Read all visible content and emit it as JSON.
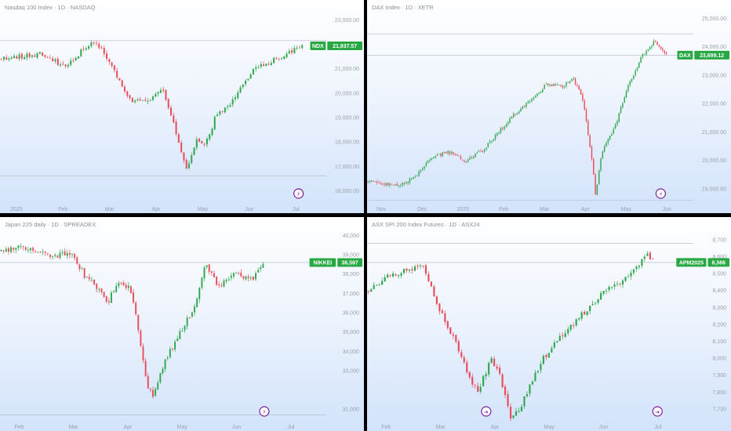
{
  "colors": {
    "up": "#2fa84f",
    "down": "#e84d5b",
    "tag": "#27a843",
    "grid_line": "#aeb6c2",
    "event": "#7b1fa2"
  },
  "chart_data": [
    {
      "id": "p1",
      "type": "candlestick",
      "title": "Nasdaq 100 Index · 1D · NASDAQ",
      "symbol": "NDX",
      "last_value_label": "21,937.57",
      "last_value": 21937.57,
      "ylim": [
        15500,
        23300
      ],
      "y_ticks": [
        {
          "v": 23000,
          "label": "23,000.00"
        },
        {
          "v": 22000,
          "label": "22,000.00"
        },
        {
          "v": 21000,
          "label": "21,000.00"
        },
        {
          "v": 20000,
          "label": "20,000.00"
        },
        {
          "v": 19000,
          "label": "19,000.00"
        },
        {
          "v": 18000,
          "label": "18,000.00"
        },
        {
          "v": 17000,
          "label": "17,000.00"
        },
        {
          "v": 16000,
          "label": "16,000.00"
        }
      ],
      "x_labels": [
        "2025",
        "Feb",
        "Mar",
        "Apr",
        "May",
        "Jun",
        "Jul"
      ],
      "levels": [
        22150,
        16600
      ],
      "event_icons": [
        {
          "at": 0.915,
          "glyph": "⚡"
        }
      ],
      "shape": [
        [
          0,
          21400
        ],
        [
          0.12,
          21600
        ],
        [
          0.2,
          21100
        ],
        [
          0.28,
          22100
        ],
        [
          0.31,
          21900
        ],
        [
          0.36,
          20700
        ],
        [
          0.4,
          19700
        ],
        [
          0.45,
          19600
        ],
        [
          0.5,
          20200
        ],
        [
          0.53,
          18800
        ],
        [
          0.56,
          17300
        ],
        [
          0.575,
          16800
        ],
        [
          0.6,
          18100
        ],
        [
          0.63,
          17900
        ],
        [
          0.66,
          19000
        ],
        [
          0.7,
          19500
        ],
        [
          0.74,
          20200
        ],
        [
          0.78,
          21000
        ],
        [
          0.85,
          21400
        ],
        [
          0.9,
          21750
        ],
        [
          0.93,
          21940
        ]
      ],
      "t_end": 0.93,
      "n": 118,
      "seed": 11,
      "vol": 180
    },
    {
      "id": "p2",
      "type": "candlestick",
      "title": "DAX Index · 1D · XETR",
      "symbol": "DAX",
      "last_value_label": "23,699.12",
      "last_value": 23699.12,
      "ylim": [
        18500,
        25200
      ],
      "y_ticks": [
        {
          "v": 25000,
          "label": "25,000.00"
        },
        {
          "v": 24000,
          "label": "24,000.00"
        },
        {
          "v": 23000,
          "label": "23,000.00"
        },
        {
          "v": 22000,
          "label": "22,000.00"
        },
        {
          "v": 21000,
          "label": "21,000.00"
        },
        {
          "v": 20000,
          "label": "20,000.00"
        },
        {
          "v": 19000,
          "label": "19,000.00"
        },
        {
          "v": 18000,
          "label": "18,000.00"
        }
      ],
      "x_labels": [
        "Nov",
        "Dec",
        "2025",
        "Feb",
        "Mar",
        "Apr",
        "May",
        "Jun"
      ],
      "levels": [
        24450,
        23700,
        18600
      ],
      "event_icons": [
        {
          "at": 0.9,
          "glyph": "⚡"
        }
      ],
      "shape": [
        [
          0,
          19250
        ],
        [
          0.05,
          19200
        ],
        [
          0.1,
          19100
        ],
        [
          0.15,
          19450
        ],
        [
          0.2,
          20100
        ],
        [
          0.25,
          20300
        ],
        [
          0.3,
          20000
        ],
        [
          0.35,
          20300
        ],
        [
          0.45,
          21600
        ],
        [
          0.52,
          22300
        ],
        [
          0.55,
          22700
        ],
        [
          0.6,
          22600
        ],
        [
          0.63,
          22900
        ],
        [
          0.66,
          22200
        ],
        [
          0.69,
          20000
        ],
        [
          0.7,
          18800
        ],
        [
          0.72,
          20300
        ],
        [
          0.76,
          21200
        ],
        [
          0.8,
          22600
        ],
        [
          0.84,
          23600
        ],
        [
          0.88,
          24200
        ],
        [
          0.9,
          23900
        ],
        [
          0.92,
          23700
        ]
      ],
      "t_end": 0.92,
      "n": 165,
      "seed": 23,
      "vol": 110
    },
    {
      "id": "p3",
      "type": "candlestick",
      "title": "Japan 225 daily · 1D · SPREADEX",
      "symbol": "NIKKEI",
      "last_value_label": "38,597",
      "last_value": 38597,
      "ylim": [
        30400,
        40300
      ],
      "y_ticks": [
        {
          "v": 40000,
          "label": "40,000"
        },
        {
          "v": 39000,
          "label": "39,000"
        },
        {
          "v": 38000,
          "label": "38,000"
        },
        {
          "v": 37000,
          "label": "37,000"
        },
        {
          "v": 36000,
          "label": "36,000"
        },
        {
          "v": 35000,
          "label": "35,000"
        },
        {
          "v": 34000,
          "label": "34,000"
        },
        {
          "v": 33000,
          "label": "33,000"
        },
        {
          "v": 31000,
          "label": "31,000"
        }
      ],
      "x_labels": [
        "Feb",
        "Mar",
        "Apr",
        "May",
        "Jun",
        "Jul"
      ],
      "levels": [
        38600,
        30700
      ],
      "event_icons": [
        {
          "at": 0.81,
          "glyph": "⚡"
        }
      ],
      "shape": [
        [
          0,
          39200
        ],
        [
          0.08,
          39400
        ],
        [
          0.15,
          38900
        ],
        [
          0.22,
          39100
        ],
        [
          0.26,
          37900
        ],
        [
          0.3,
          37300
        ],
        [
          0.33,
          36500
        ],
        [
          0.36,
          37600
        ],
        [
          0.4,
          37200
        ],
        [
          0.42,
          35500
        ],
        [
          0.45,
          32300
        ],
        [
          0.47,
          31700
        ],
        [
          0.5,
          33300
        ],
        [
          0.55,
          34900
        ],
        [
          0.6,
          36400
        ],
        [
          0.63,
          38600
        ],
        [
          0.67,
          37300
        ],
        [
          0.72,
          38000
        ],
        [
          0.77,
          37700
        ],
        [
          0.81,
          38600
        ]
      ],
      "t_end": 0.81,
      "n": 108,
      "seed": 37,
      "vol": 260
    },
    {
      "id": "p4",
      "type": "candlestick",
      "title": "ASX SPI 200 Index Futures · 1D · ASX24",
      "symbol": "APM2025",
      "last_value_label": "8,566",
      "last_value": 8566,
      "ylim": [
        7630,
        8760
      ],
      "y_ticks": [
        {
          "v": 8700,
          "label": "8,700"
        },
        {
          "v": 8600,
          "label": "8,600"
        },
        {
          "v": 8500,
          "label": "8,500"
        },
        {
          "v": 8400,
          "label": "8,400"
        },
        {
          "v": 8300,
          "label": "8,300"
        },
        {
          "v": 8200,
          "label": "8,200"
        },
        {
          "v": 8100,
          "label": "8,100"
        },
        {
          "v": 8000,
          "label": "8,000"
        },
        {
          "v": 7900,
          "label": "7,900"
        },
        {
          "v": 7800,
          "label": "7,800"
        },
        {
          "v": 7700,
          "label": "7,700"
        }
      ],
      "x_labels": [
        "Feb",
        "Mar",
        "Apr",
        "May",
        "Jun",
        "Jul"
      ],
      "levels": [
        8680,
        8566
      ],
      "event_icons": [
        {
          "at": 0.365,
          "glyph": "➔"
        },
        {
          "at": 0.89,
          "glyph": "➔"
        }
      ],
      "shape": [
        [
          0,
          8400
        ],
        [
          0.06,
          8480
        ],
        [
          0.12,
          8520
        ],
        [
          0.17,
          8550
        ],
        [
          0.22,
          8300
        ],
        [
          0.27,
          8100
        ],
        [
          0.31,
          7900
        ],
        [
          0.34,
          7800
        ],
        [
          0.38,
          8000
        ],
        [
          0.41,
          7880
        ],
        [
          0.44,
          7650
        ],
        [
          0.47,
          7700
        ],
        [
          0.5,
          7850
        ],
        [
          0.54,
          8000
        ],
        [
          0.58,
          8100
        ],
        [
          0.63,
          8200
        ],
        [
          0.68,
          8300
        ],
        [
          0.73,
          8400
        ],
        [
          0.78,
          8450
        ],
        [
          0.83,
          8550
        ],
        [
          0.86,
          8620
        ],
        [
          0.88,
          8566
        ]
      ],
      "t_end": 0.88,
      "n": 105,
      "seed": 53,
      "vol": 30
    }
  ]
}
